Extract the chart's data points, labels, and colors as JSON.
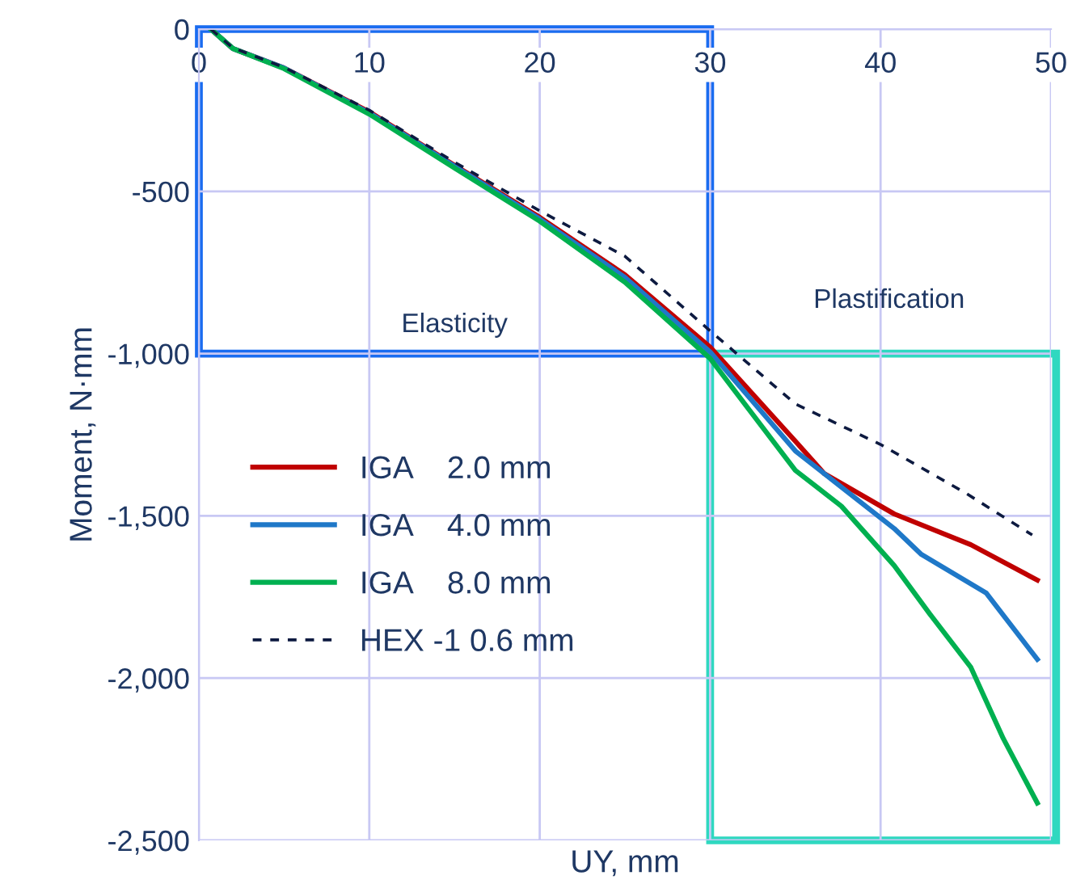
{
  "chart_data": {
    "type": "line",
    "xlabel": "UY, mm",
    "ylabel": "Moment, N·mm",
    "xlim": [
      0,
      50
    ],
    "ylim": [
      -2500,
      0
    ],
    "xticks": [
      0,
      10,
      20,
      30,
      40,
      50
    ],
    "yticks": [
      {
        "value": -2500,
        "label": "-2,500"
      },
      {
        "value": -2000,
        "label": "-2,000"
      },
      {
        "value": -1500,
        "label": "-1,500"
      },
      {
        "value": -1000,
        "label": "-1,000"
      },
      {
        "value": -500,
        "label": "-500"
      },
      {
        "value": 0,
        "label": "0"
      }
    ],
    "grid": true,
    "legend": "left",
    "line_style": "solid",
    "marker": "none",
    "annotations": [
      "Elasticity",
      "Plastification"
    ],
    "series": [
      {
        "name": "IGA    2.0 mm",
        "color": "#c00000",
        "x": [
          0.7,
          2,
          5,
          10,
          15,
          20,
          25,
          30,
          35,
          36.7,
          40.8,
          45.3,
          49.2
        ],
        "values": [
          0,
          -60,
          -120,
          -255,
          -420,
          -580,
          -757,
          -980,
          -1270,
          -1370,
          -1494,
          -1589,
          -1698
        ]
      },
      {
        "name": "IGA    4.0 mm",
        "color": "#1f78c8",
        "x": [
          0.7,
          2,
          5,
          10,
          15,
          20,
          25,
          30,
          35,
          40.8,
          42.4,
          46.2,
          49.2
        ],
        "values": [
          0,
          -60,
          -120,
          -258,
          -422,
          -585,
          -765,
          -995,
          -1300,
          -1539,
          -1619,
          -1738,
          -1942
        ]
      },
      {
        "name": "IGA    8.0 mm",
        "color": "#00b050",
        "x": [
          0.7,
          2,
          5,
          10,
          15,
          20,
          25,
          30,
          35,
          37.7,
          40.8,
          42.9,
          45.3,
          47.2,
          49.2
        ],
        "values": [
          0,
          -60,
          -122,
          -262,
          -428,
          -592,
          -780,
          -1015,
          -1360,
          -1470,
          -1653,
          -1803,
          -1967,
          -2186,
          -2385
        ]
      },
      {
        "name": "HEX -1 0.6 mm",
        "color": "#0d1a40",
        "line_style": "dashed",
        "x": [
          0.7,
          2,
          5,
          10,
          15,
          20,
          25,
          30,
          35,
          40,
          45,
          48.9
        ],
        "values": [
          0,
          -58,
          -118,
          -250,
          -410,
          -560,
          -700,
          -930,
          -1155,
          -1280,
          -1430,
          -1559
        ]
      }
    ]
  }
}
